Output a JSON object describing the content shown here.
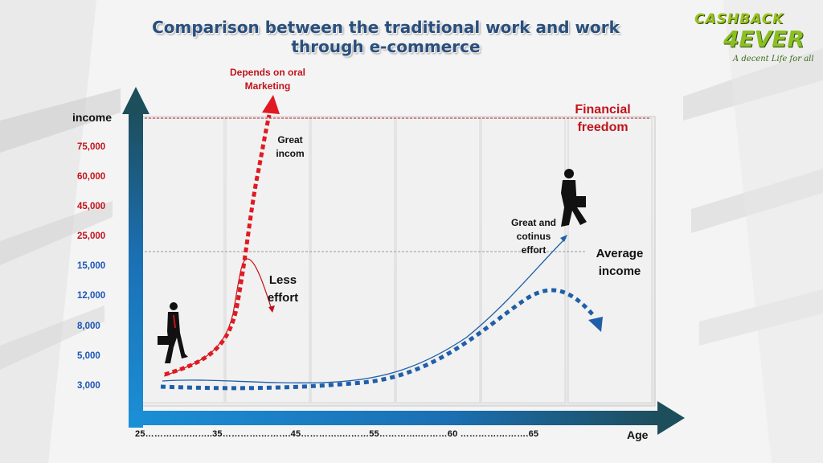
{
  "title": "Comparison between the traditional work and work through e-commerce",
  "logo": {
    "line1": "CASHBACK",
    "line2": "4EVER",
    "tagline": "A decent Life for all"
  },
  "colors": {
    "ecommerce_line": "#e01a22",
    "traditional_line": "#1f5fa8",
    "accent_red": "#c0141b",
    "axis_blue": "#1b7fc8",
    "axis_dark": "#1d4e5c",
    "tick_red": "#c0141b",
    "tick_blue": "#1b55b5"
  },
  "axes": {
    "y_title": "income",
    "x_title": "Age",
    "x_tick_text": "25……….…..……..35………….……….45…………..………55…………..………60 ………….……….65",
    "y_ticks": [
      {
        "label": "75,000",
        "color": "#c0141b"
      },
      {
        "label": "60,000",
        "color": "#c0141b"
      },
      {
        "label": "45,000",
        "color": "#c0141b"
      },
      {
        "label": "25,000",
        "color": "#c0141b"
      },
      {
        "label": "15,000",
        "color": "#1b55b5"
      },
      {
        "label": "12,000",
        "color": "#1b55b5"
      },
      {
        "label": "8,000",
        "color": "#1b55b5"
      },
      {
        "label": "5,000",
        "color": "#1b55b5"
      },
      {
        "label": "3,000",
        "color": "#1b55b5"
      }
    ]
  },
  "annotations": {
    "depends": "Depends on oral Marketing",
    "great_incom": "Great incom",
    "less_effort": "Less effort",
    "great_cont": "Great and cotinus effort",
    "avg_income": "Average income",
    "fin_freedom": "Financial freedom"
  },
  "icons": [
    "walking-businessman-icon",
    "climbing-businessman-icon"
  ]
}
